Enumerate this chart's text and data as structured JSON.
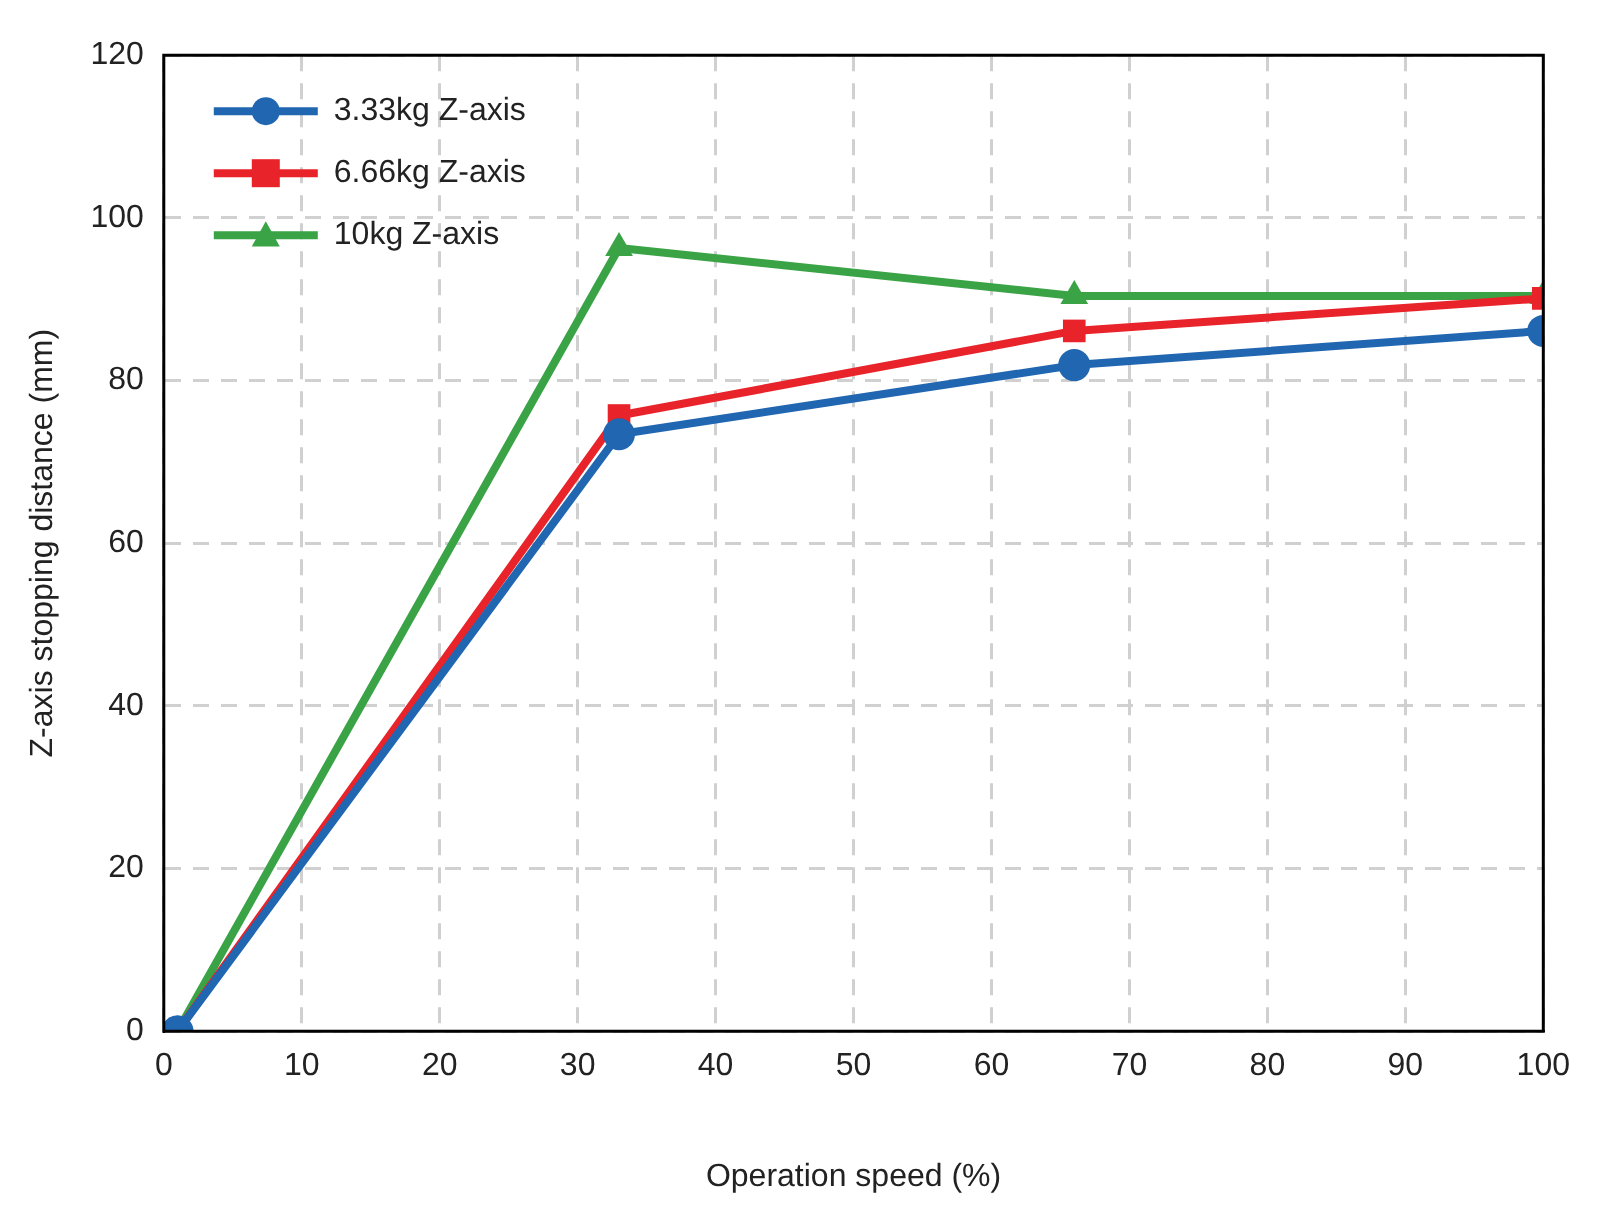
{
  "chart_data": {
    "type": "line",
    "xlabel": "Operation speed (%)",
    "ylabel": "Z-axis stopping distance (mm)",
    "x": [
      1,
      33,
      66,
      100
    ],
    "series": [
      {
        "name": "3.33kg Z-axis",
        "color": "#2166b0",
        "marker": "circle",
        "values": [
          0,
          73.4,
          81.9,
          86.1
        ]
      },
      {
        "name": "6.66kg Z-axis",
        "color": "#e8232a",
        "marker": "square",
        "values": [
          0,
          75.7,
          86.1,
          90.1
        ]
      },
      {
        "name": "10kg Z-axis",
        "color": "#3aa346",
        "marker": "triangle",
        "values": [
          0,
          96.3,
          90.4,
          90.4
        ]
      }
    ],
    "xlim": [
      0,
      100
    ],
    "xticks": [
      0,
      10,
      20,
      30,
      40,
      50,
      60,
      70,
      80,
      90,
      100
    ],
    "ylim": [
      0,
      120
    ],
    "yticks": [
      0,
      20,
      40,
      60,
      80,
      100,
      120
    ],
    "grid": true,
    "legend": "top left",
    "line_style": "solid"
  }
}
